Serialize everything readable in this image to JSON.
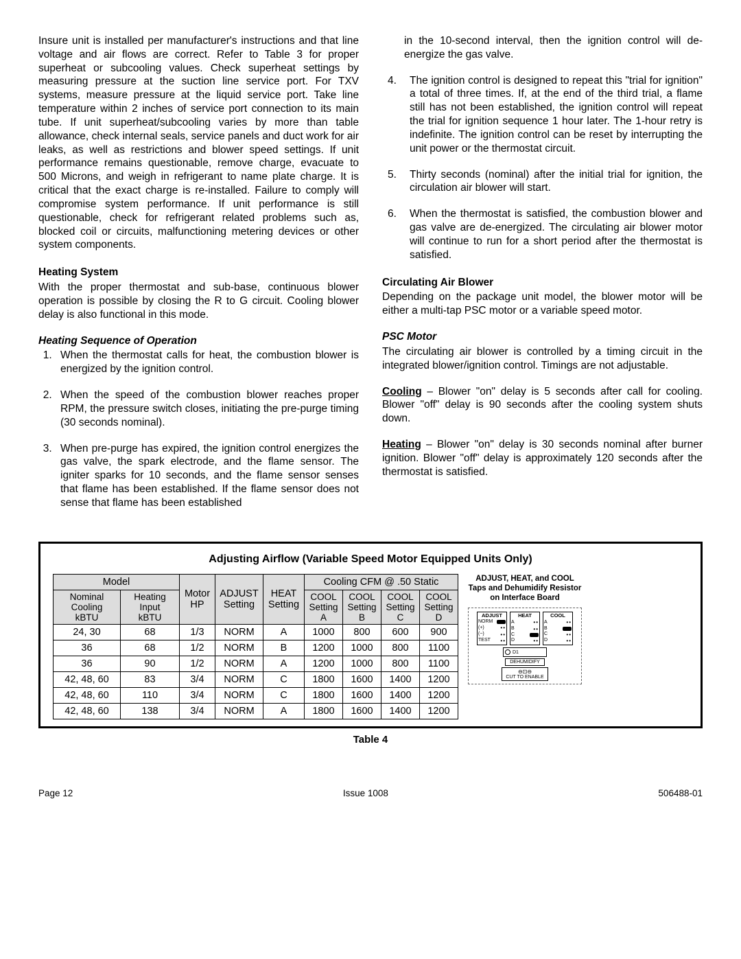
{
  "left": {
    "p1": "Insure unit is installed per manufacturer's instructions and that line voltage and air flows are correct.  Refer to Table 3 for proper superheat or subcooling values.  Check superheat settings by measuring pressure at the suction line service port.  For TXV systems, measure pressure at the liquid service port.  Take line temperature within 2 inches of service port connection to its main tube.  If unit superheat/subcooling varies by more than table allowance, check internal seals, service panels and duct work for air leaks, as well as restrictions and blower speed settings.  If unit performance remains questionable, remove charge, evacuate to 500 Microns, and weigh in refrigerant to name plate charge.  It is critical that the exact charge is re-installed.  Failure to comply will compromise system performance.  If unit performance is still questionable, check for refrigerant related problems such as, blocked coil or circuits, malfunctioning metering devices or other system components.",
    "h1": "Heating System",
    "p2": "With the proper thermostat and sub-base, continuous blower operation is possible by closing the R to G circuit. Cooling blower delay is also functional in this mode.",
    "h2": "Heating Sequence of Operation",
    "li1": "When the thermostat calls for heat, the combustion blower is energized by the ignition control.",
    "li2": "When the speed of the combustion blower reaches proper RPM, the pressure switch closes, initiating the pre-purge timing (30 seconds nominal).",
    "li3": "When pre-purge has expired, the ignition control energizes the gas valve, the spark electrode, and the flame sensor.  The igniter sparks for 10 seconds, and the flame sensor senses that flame has been established.  If the flame sensor does not sense that flame has been established"
  },
  "right": {
    "p1": "in the 10-second interval, then the ignition control will de-energize the gas valve.",
    "li4": "The ignition control is designed to repeat this \"trial for ignition\" a total of three times.  If, at the end of the third trial, a flame still has not been established, the ignition control will repeat the trial for ignition sequence 1 hour later.  The 1-hour retry is indefinite.  The ignition control can be reset by interrupting the unit power or the thermostat circuit.",
    "li5": "Thirty seconds (nominal) after the initial trial for ignition, the circulation air blower will start.",
    "li6": "When the thermostat is satisfied, the combustion blower and gas valve are de-energized.  The circulating air blower motor will continue to run for a short period after the thermostat is satisfied.",
    "h1": "Circulating Air Blower",
    "p2": "Depending on the package unit model, the blower motor will be either a multi-tap PSC motor or a variable speed motor.",
    "h2": "PSC Motor",
    "p3": "The circulating air blower is controlled by a timing circuit in the integrated blower/ignition control.  Timings are not adjustable.",
    "cooling_label": "Cooling",
    "p4": " – Blower \"on\" delay is 5 seconds after call for cooling.  Blower \"off\" delay is 90 seconds after the cooling system shuts down.",
    "heating_label": "Heating",
    "p5": " – Blower \"on\" delay is 30 seconds nominal after burner ignition.  Blower \"off\" delay is approximately 120 seconds after the thermostat is satisfied."
  },
  "table": {
    "title": "Adjusting Airflow (Variable Speed Motor Equipped Units Only)",
    "headers": {
      "model": "Model",
      "motor": "Motor\nHP",
      "adjust": "ADJUST\nSetting",
      "heat": "HEAT\nSetting",
      "cooling_group": "Cooling CFM @ .50 Static",
      "nom": "Nominal\nCooling\nkBTU",
      "hin": "Heating\nInput\nkBTU",
      "ca": "COOL\nSetting\nA",
      "cb": "COOL\nSetting\nB",
      "cc": "COOL\nSetting\nC",
      "cd": "COOL\nSetting\nD"
    },
    "rows": [
      [
        "24, 30",
        "68",
        "1/3",
        "NORM",
        "A",
        "1000",
        "800",
        "600",
        "900"
      ],
      [
        "36",
        "68",
        "1/2",
        "NORM",
        "B",
        "1200",
        "1000",
        "800",
        "1100"
      ],
      [
        "36",
        "90",
        "1/2",
        "NORM",
        "A",
        "1200",
        "1000",
        "800",
        "1100"
      ],
      [
        "42, 48, 60",
        "83",
        "3/4",
        "NORM",
        "C",
        "1800",
        "1600",
        "1400",
        "1200"
      ],
      [
        "42, 48, 60",
        "110",
        "3/4",
        "NORM",
        "C",
        "1800",
        "1600",
        "1400",
        "1200"
      ],
      [
        "42, 48, 60",
        "138",
        "3/4",
        "NORM",
        "A",
        "1800",
        "1600",
        "1400",
        "1200"
      ]
    ],
    "caption": "Table 4",
    "side_title": "ADJUST, HEAT, and COOL Taps and Dehumidify Resistor on Interface Board",
    "diag": {
      "adjust": "ADJUST",
      "heat": "HEAT",
      "cool": "COOL",
      "norm": "NORM",
      "plus": "(+)",
      "minus": "(−)",
      "test": "TEST",
      "a": "A",
      "b": "B",
      "c": "C",
      "d": "D",
      "d1": "D1",
      "dehum": "DEHUMIDIFY",
      "cut": "CUT TO ENABLE"
    }
  },
  "footer": {
    "left": "Page 12",
    "center": "Issue 1008",
    "right": "506488-01"
  }
}
